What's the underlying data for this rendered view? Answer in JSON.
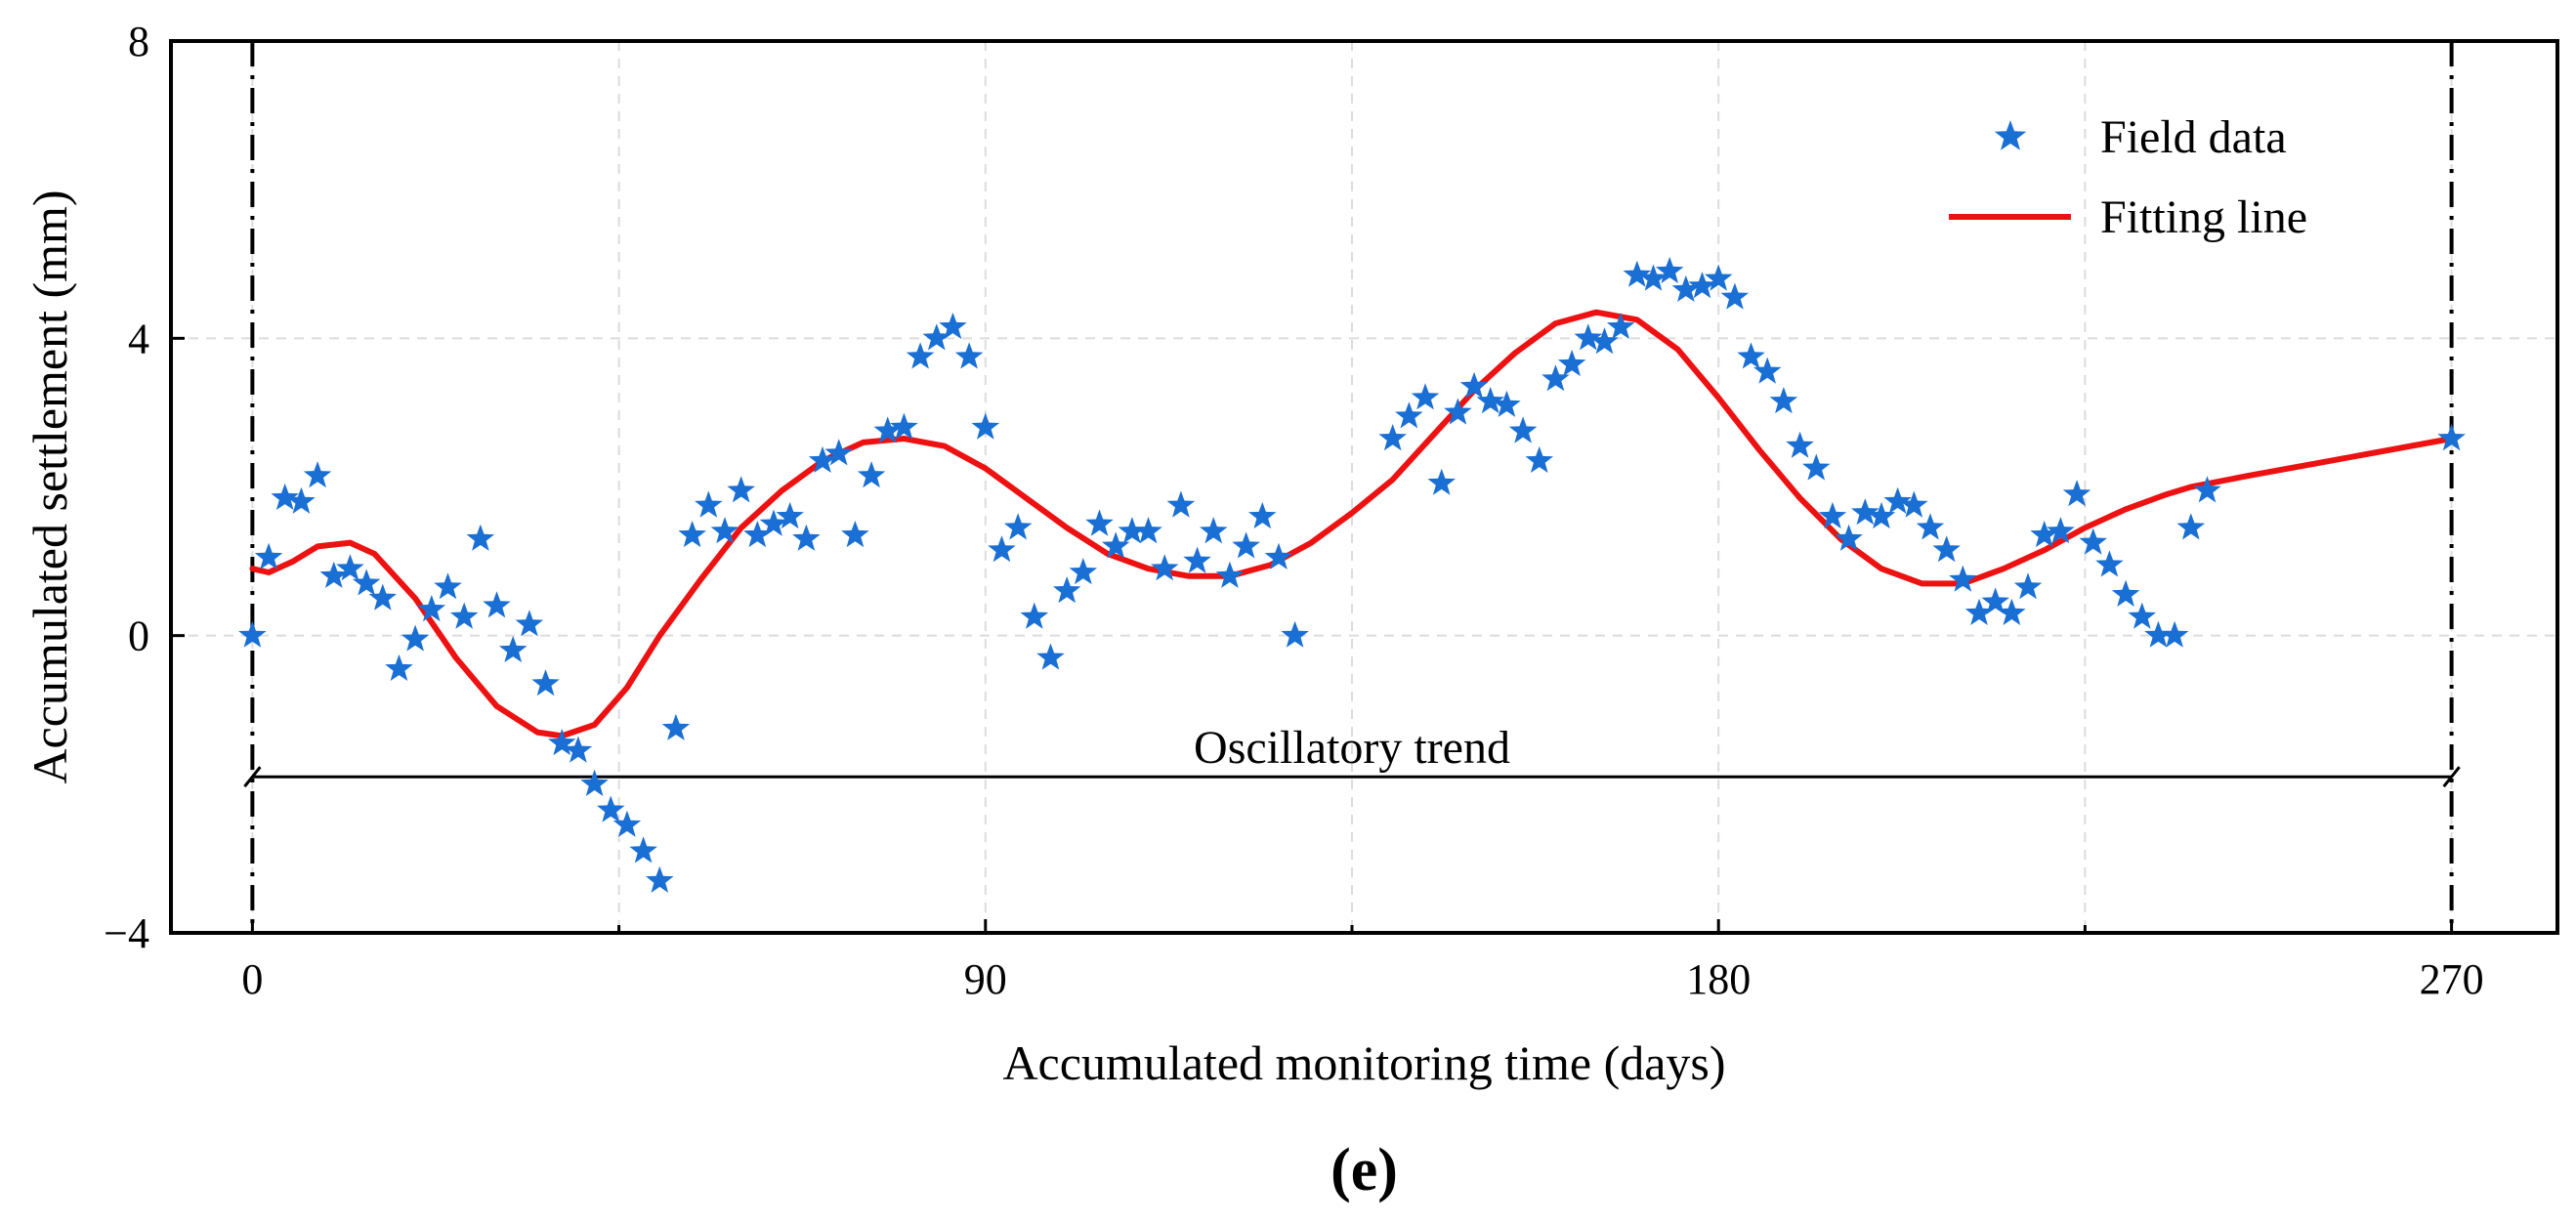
{
  "chart_data": {
    "type": "scatter",
    "title": "",
    "xlabel": "Accumulated monitoring time (days)",
    "ylabel": "Accumulated settlement (mm)",
    "xlim": [
      -10,
      283
    ],
    "ylim": [
      -4,
      8
    ],
    "xticks": [
      0,
      90,
      180,
      270
    ],
    "xtick_labels": [
      "0",
      "90",
      "180",
      "270"
    ],
    "yticks": [
      -4,
      0,
      4,
      8
    ],
    "ytick_labels": [
      "−4",
      "0",
      "4",
      "8"
    ],
    "minor_xticks": [
      45,
      135,
      225
    ],
    "grid": true,
    "legend_position": "top-right",
    "annotation": {
      "text": "Oscillatory trend",
      "y": -1.9,
      "x_start": 0,
      "x_end": 270,
      "boundary_x": [
        0,
        270
      ]
    },
    "panel_label": "(e)",
    "series": [
      {
        "name": "Field data",
        "kind": "scatter",
        "marker": "star",
        "color": "#1a6fd4",
        "x": [
          0,
          2,
          4,
          6,
          8,
          10,
          12,
          14,
          16,
          18,
          20,
          22,
          24,
          26,
          28,
          30,
          32,
          34,
          36,
          38,
          40,
          42,
          44,
          46,
          48,
          50,
          52,
          54,
          56,
          58,
          60,
          62,
          64,
          66,
          68,
          70,
          72,
          74,
          76,
          78,
          80,
          82,
          84,
          86,
          88,
          90,
          92,
          94,
          96,
          98,
          100,
          102,
          104,
          106,
          108,
          110,
          112,
          114,
          116,
          118,
          120,
          122,
          124,
          126,
          128,
          140,
          142,
          144,
          146,
          148,
          150,
          152,
          154,
          156,
          158,
          160,
          162,
          164,
          166,
          168,
          170,
          172,
          174,
          176,
          178,
          180,
          182,
          184,
          186,
          188,
          190,
          192,
          194,
          196,
          198,
          200,
          202,
          204,
          206,
          208,
          210,
          212,
          214,
          216,
          218,
          220,
          222,
          224,
          226,
          228,
          230,
          232,
          234,
          236,
          238,
          240,
          270
        ],
        "y": [
          0.0,
          1.05,
          1.85,
          1.8,
          2.15,
          0.8,
          0.9,
          0.7,
          0.5,
          -0.45,
          -0.05,
          0.35,
          0.65,
          0.25,
          1.3,
          0.4,
          -0.2,
          0.15,
          -0.65,
          -1.45,
          -1.55,
          -2.0,
          -2.35,
          -2.55,
          -2.9,
          -3.3,
          -1.25,
          1.35,
          1.75,
          1.4,
          1.95,
          1.35,
          1.5,
          1.6,
          1.3,
          2.35,
          2.45,
          1.35,
          2.15,
          2.75,
          2.8,
          3.75,
          4.0,
          4.15,
          3.75,
          2.8,
          1.15,
          1.45,
          0.25,
          -0.3,
          0.6,
          0.85,
          1.5,
          1.2,
          1.4,
          1.4,
          0.9,
          1.75,
          1.0,
          1.4,
          0.8,
          1.2,
          1.6,
          1.05,
          0.0,
          2.65,
          2.95,
          3.2,
          2.05,
          3.0,
          3.35,
          3.15,
          3.1,
          2.75,
          2.35,
          3.45,
          3.65,
          4.0,
          3.95,
          4.15,
          4.85,
          4.8,
          4.9,
          4.65,
          4.7,
          4.8,
          4.55,
          3.75,
          3.55,
          3.15,
          2.55,
          2.25,
          1.6,
          1.3,
          1.65,
          1.6,
          1.8,
          1.75,
          1.45,
          1.15,
          0.75,
          0.3,
          0.45,
          0.3,
          0.65,
          1.35,
          1.4,
          1.9,
          1.25,
          0.95,
          0.55,
          0.25,
          0.0,
          0.0,
          1.45,
          1.95,
          2.65
        ]
      },
      {
        "name": "Fitting line",
        "kind": "line",
        "color": "#ee1111",
        "x": [
          0,
          2,
          5,
          8,
          12,
          15,
          20,
          25,
          30,
          35,
          38,
          42,
          46,
          50,
          55,
          60,
          65,
          70,
          75,
          80,
          85,
          90,
          95,
          100,
          105,
          110,
          115,
          120,
          125,
          130,
          135,
          140,
          145,
          150,
          155,
          160,
          165,
          170,
          175,
          180,
          185,
          190,
          195,
          200,
          205,
          210,
          215,
          220,
          225,
          230,
          235,
          238,
          245,
          255,
          270
        ],
        "y": [
          0.9,
          0.85,
          1.0,
          1.2,
          1.25,
          1.1,
          0.5,
          -0.3,
          -0.95,
          -1.3,
          -1.35,
          -1.2,
          -0.7,
          0.0,
          0.75,
          1.45,
          1.95,
          2.35,
          2.6,
          2.65,
          2.55,
          2.25,
          1.85,
          1.45,
          1.1,
          0.9,
          0.8,
          0.8,
          0.95,
          1.25,
          1.65,
          2.1,
          2.7,
          3.3,
          3.8,
          4.2,
          4.35,
          4.25,
          3.85,
          3.2,
          2.5,
          1.85,
          1.3,
          0.9,
          0.7,
          0.7,
          0.9,
          1.15,
          1.45,
          1.7,
          1.9,
          2.0,
          2.15,
          2.35,
          2.65
        ]
      }
    ]
  }
}
